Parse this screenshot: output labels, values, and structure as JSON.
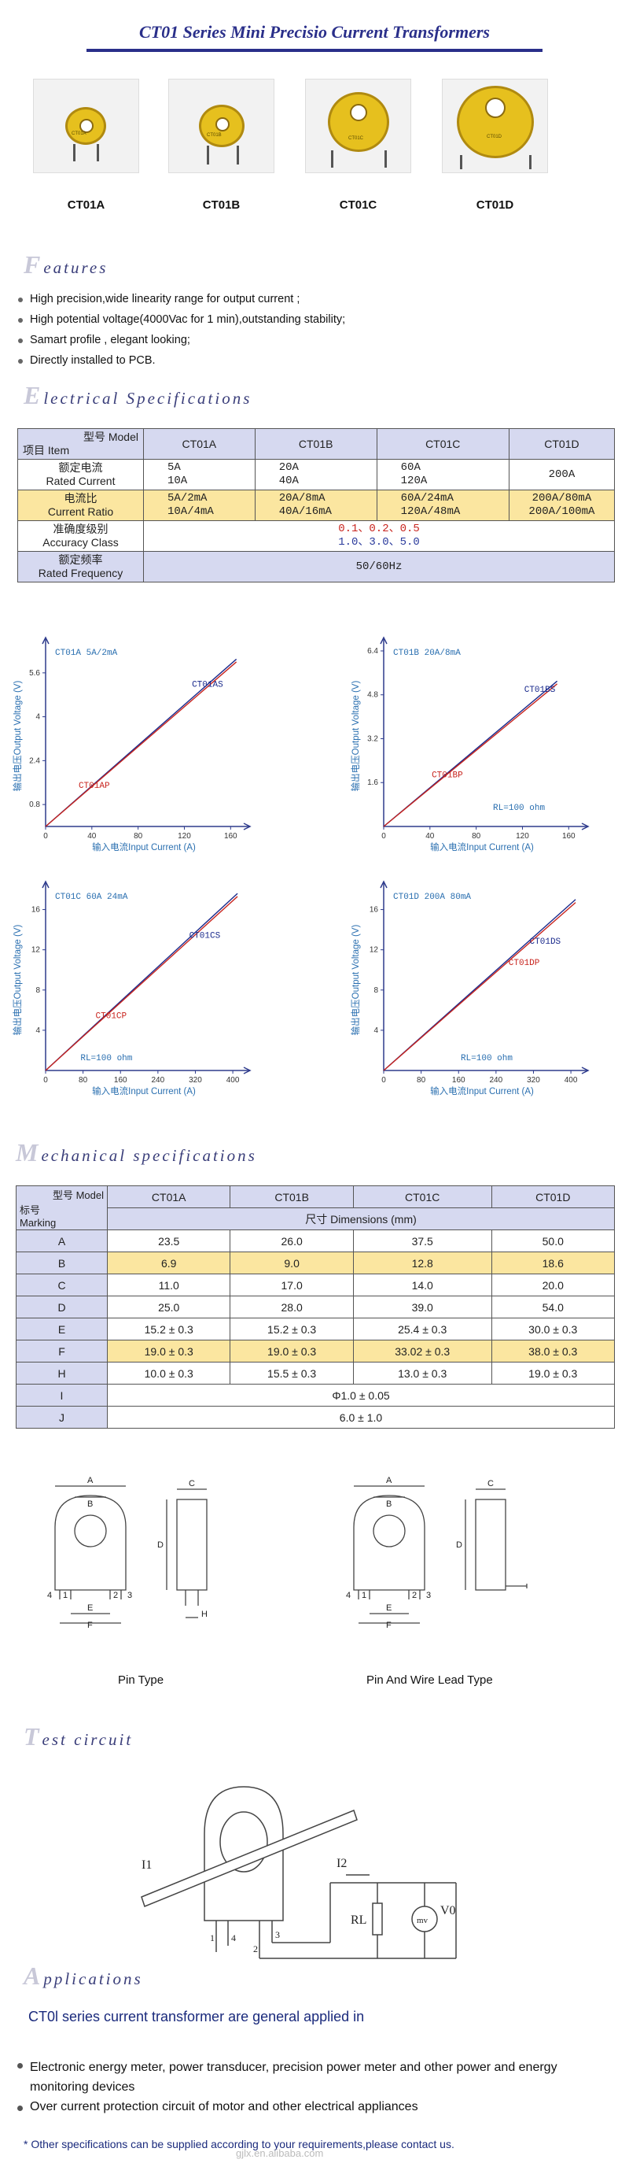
{
  "page_title": "CT01 Series Mini Precisio Current Transformers",
  "products": [
    {
      "label": "CT01A",
      "mark": "CT01A"
    },
    {
      "label": "CT01B",
      "mark": "CT01B"
    },
    {
      "label": "CT01C",
      "mark": "CT01C"
    },
    {
      "label": "CT01D",
      "mark": "CT01D"
    }
  ],
  "features": {
    "heading_cap": "F",
    "heading_rest": "eatures",
    "items": [
      "High precision,wide linearity range for output current ;",
      "High potential voltage(4000Vac for 1 min),outstanding stability;",
      "Samart profile , elegant looking;",
      "Directly installed to PCB."
    ]
  },
  "electrical": {
    "heading_cap": "E",
    "heading_rest": "lectrical Specifications",
    "corner_top": "型号 Model",
    "corner_bottom": "项目 Item",
    "models": [
      "CT01A",
      "CT01B",
      "CT01C",
      "CT01D"
    ],
    "rows": [
      {
        "label_cn": "额定电流",
        "label_en": "Rated Current",
        "cells": [
          "5A\n10A",
          "20A\n40A",
          "60A\n120A",
          "200A"
        ]
      },
      {
        "label_cn": "电流比",
        "label_en": "Current Ratio",
        "cells": [
          "5A/2mA\n10A/4mA",
          "20A/8mA\n40A/16mA",
          "60A/24mA\n120A/48mA",
          "200A/80mA\n200A/100mA"
        ]
      },
      {
        "label_cn": "准确度级别",
        "label_en": "Accuracy Class",
        "merged_line1": "0.1、0.2、0.5",
        "merged_line2": "1.0、3.0、5.0"
      },
      {
        "label_cn": "额定频率",
        "label_en": "Rated Frequency",
        "merged": "50/60Hz"
      }
    ]
  },
  "chart_data": [
    {
      "type": "line",
      "title": "CT01A 5A/2mA",
      "xlabel": "输入电流Input Current (A)",
      "ylabel": "输出电压Output Voltage (V)",
      "x_ticks": [
        0,
        40,
        80,
        120,
        160
      ],
      "y_ticks": [
        0.8,
        2.4,
        4.0,
        5.6
      ],
      "xlim": [
        0,
        170
      ],
      "ylim": [
        0,
        6.6
      ],
      "series": [
        {
          "name": "CT01AS",
          "color": "#1a2a8c",
          "x": [
            0,
            165
          ],
          "y": [
            0,
            6.1
          ]
        },
        {
          "name": "CT01AP",
          "color": "#c8241e",
          "x": [
            0,
            165
          ],
          "y": [
            0,
            6.0
          ]
        }
      ],
      "annotations": [
        {
          "text": "CT01AS",
          "x": 140,
          "y": 5.1,
          "color": "#1a2a8c"
        },
        {
          "text": "CT01AP",
          "x": 42,
          "y": 1.4,
          "color": "#c8241e"
        }
      ]
    },
    {
      "type": "line",
      "title": "CT01B 20A/8mA",
      "xlabel": "输入电流Input Current (A)",
      "ylabel": "输出电压Output Voltage (V)",
      "x_ticks": [
        0,
        40,
        80,
        120,
        160
      ],
      "y_ticks": [
        1.6,
        3.2,
        4.8,
        6.4
      ],
      "xlim": [
        0,
        170
      ],
      "ylim": [
        0,
        6.6
      ],
      "series": [
        {
          "name": "CT01BS",
          "color": "#1a2a8c",
          "x": [
            0,
            150
          ],
          "y": [
            0,
            5.3
          ]
        },
        {
          "name": "CT01BP",
          "color": "#c8241e",
          "x": [
            0,
            150
          ],
          "y": [
            0,
            5.2
          ]
        }
      ],
      "annotations": [
        {
          "text": "CT01BS",
          "x": 135,
          "y": 4.9,
          "color": "#1a2a8c"
        },
        {
          "text": "CT01BP",
          "x": 55,
          "y": 1.8,
          "color": "#c8241e"
        },
        {
          "text": "RL=100 ohm",
          "x": 117,
          "y": 0.6,
          "color": "#2a6fb0"
        }
      ]
    },
    {
      "type": "line",
      "title": "CT01C 60A 24mA",
      "xlabel": "输入电流Input Current (A)",
      "ylabel": "输出电压Output Voltage (V)",
      "x_ticks": [
        0,
        80,
        160,
        240,
        320,
        400
      ],
      "y_ticks": [
        4,
        8,
        12,
        16
      ],
      "xlim": [
        0,
        420
      ],
      "ylim": [
        0,
        18
      ],
      "series": [
        {
          "name": "CT01CS",
          "color": "#1a2a8c",
          "x": [
            0,
            410
          ],
          "y": [
            0,
            17.6
          ]
        },
        {
          "name": "CT01CP",
          "color": "#c8241e",
          "x": [
            0,
            410
          ],
          "y": [
            0,
            17.3
          ]
        }
      ],
      "annotations": [
        {
          "text": "CT01CS",
          "x": 340,
          "y": 13.2,
          "color": "#1a2a8c"
        },
        {
          "text": "CT01CP",
          "x": 140,
          "y": 5.2,
          "color": "#c8241e"
        },
        {
          "text": "RL=100 ohm",
          "x": 130,
          "y": 1.0,
          "color": "#2a6fb0"
        }
      ]
    },
    {
      "type": "line",
      "title": "CT01D 200A 80mA",
      "xlabel": "输入电流Input Current (A)",
      "ylabel": "输出电压Output Voltage (V)",
      "x_ticks": [
        0,
        80,
        160,
        240,
        320,
        400
      ],
      "y_ticks": [
        4,
        8,
        12,
        16
      ],
      "xlim": [
        0,
        420
      ],
      "ylim": [
        0,
        18
      ],
      "series": [
        {
          "name": "CT01DS",
          "color": "#1a2a8c",
          "x": [
            0,
            410
          ],
          "y": [
            0,
            17.0
          ]
        },
        {
          "name": "CT01DP",
          "color": "#c8241e",
          "x": [
            0,
            410
          ],
          "y": [
            0,
            16.7
          ]
        }
      ],
      "annotations": [
        {
          "text": "CT01DS",
          "x": 345,
          "y": 12.6,
          "color": "#1a2a8c"
        },
        {
          "text": "CT01DP",
          "x": 300,
          "y": 10.5,
          "color": "#c8241e"
        },
        {
          "text": "RL=100 ohm",
          "x": 220,
          "y": 1.0,
          "color": "#2a6fb0"
        }
      ]
    }
  ],
  "mechanical": {
    "heading_cap": "M",
    "heading_rest": "echanical specifications",
    "corner_top": "型号 Model",
    "corner_bottom1": "标号",
    "corner_bottom2": "Marking",
    "models": [
      "CT01A",
      "CT01B",
      "CT01C",
      "CT01D"
    ],
    "dims_label": "尺寸   Dimensions  (mm)",
    "rows": [
      {
        "mark": "A",
        "cells": [
          "23.5",
          "26.0",
          "37.5",
          "50.0"
        ]
      },
      {
        "mark": "B",
        "cells": [
          "6.9",
          "9.0",
          "12.8",
          "18.6"
        ]
      },
      {
        "mark": "C",
        "cells": [
          "11.0",
          "17.0",
          "14.0",
          "20.0"
        ]
      },
      {
        "mark": "D",
        "cells": [
          "25.0",
          "28.0",
          "39.0",
          "54.0"
        ]
      },
      {
        "mark": "E",
        "cells": [
          "15.2 ± 0.3",
          "15.2 ± 0.3",
          "25.4 ± 0.3",
          "30.0 ± 0.3"
        ]
      },
      {
        "mark": "F",
        "cells": [
          "19.0 ± 0.3",
          "19.0 ± 0.3",
          "33.02 ± 0.3",
          "38.0 ± 0.3"
        ]
      },
      {
        "mark": "H",
        "cells": [
          "10.0 ± 0.3",
          "15.5 ± 0.3",
          "13.0 ± 0.3",
          "19.0 ± 0.3"
        ]
      },
      {
        "mark": "I",
        "merged": "Φ1.0 ± 0.05"
      },
      {
        "mark": "J",
        "merged": "6.0 ± 1.0"
      }
    ]
  },
  "drawings": {
    "left_caption": "Pin Type",
    "right_caption": "Pin And Wire Lead Type",
    "letters": [
      "A",
      "B",
      "C",
      "D",
      "E",
      "F",
      "H"
    ],
    "pin_numbers": [
      "1",
      "2",
      "3",
      "4"
    ]
  },
  "test_circuit": {
    "heading_cap": "T",
    "heading_rest": "est circuit",
    "i1": "I1",
    "i2": "I2",
    "rl": "RL",
    "meter": "mv",
    "v0": "V0",
    "pins": [
      "1",
      "4",
      "2",
      "3"
    ]
  },
  "applications": {
    "heading_cap": "A",
    "heading_rest": "pplications",
    "intro": "CT0l   series  current transformer are general applied in",
    "items": [
      "Electronic energy meter, power transducer, precision power meter and other power and energy monitoring devices",
      "Over current protection circuit of motor and other electrical appliances"
    ],
    "footnote": "* Other specifications can be supplied according to your requirements,please contact us.",
    "watermark": "gjlx.en.alibaba.com"
  }
}
